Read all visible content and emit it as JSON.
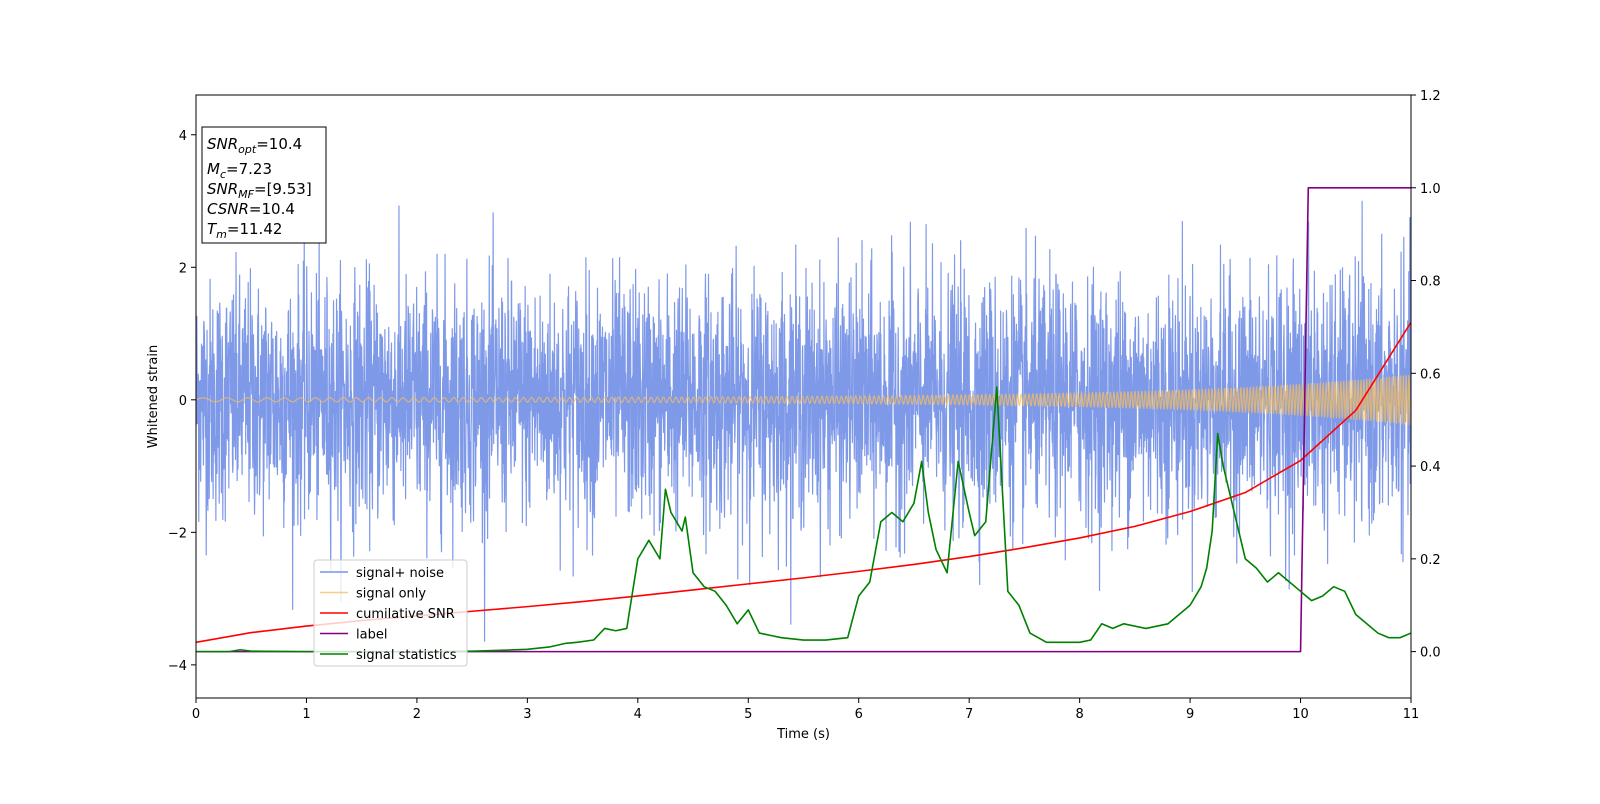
{
  "chart_data": {
    "type": "line",
    "title": "",
    "xlabel": "Time (s)",
    "ylabel": "Whitened strain",
    "ylabel_right": "",
    "xlim": [
      0,
      11
    ],
    "ylim": [
      -4.5,
      4.6
    ],
    "ylim_right": [
      -0.1,
      1.2
    ],
    "x_ticks": [
      "0",
      "1",
      "2",
      "3",
      "4",
      "5",
      "6",
      "7",
      "8",
      "9",
      "10",
      "11"
    ],
    "y_ticks": [
      "−4",
      "−2",
      "0",
      "2",
      "4"
    ],
    "y_ticks_right": [
      "0.0",
      "0.2",
      "0.4",
      "0.6",
      "0.8",
      "1.0",
      "1.2"
    ],
    "grid": false,
    "legend_position": "lower-left",
    "info_box": {
      "lines": [
        {
          "sym": "SNR",
          "sub": "opt",
          "rest": "=10.4"
        },
        {
          "sym": "M",
          "sub": "c",
          "rest": "=7.23"
        },
        {
          "sym": "SNR",
          "sub": "MF",
          "rest": "=[9.53]"
        },
        {
          "sym": "CSNR",
          "sub": "",
          "rest": "=10.4"
        },
        {
          "sym": "T",
          "sub": "m",
          "rest": "=11.42"
        }
      ]
    },
    "series": [
      {
        "name": "signal+ noise",
        "color": "#7893e8",
        "axis": "left",
        "style": "noise",
        "sample_rate_hz": 400,
        "std": 0.9,
        "peak_max": 4.18,
        "peak_min": -4.1
      },
      {
        "name": "signal only",
        "color": "#f5bd5c",
        "axis": "left",
        "style": "chirp",
        "amplitude_start": 0.03,
        "amplitude_end": 0.38,
        "frequency_start_hz": 4,
        "frequency_end_hz": 40
      },
      {
        "name": "cumilative SNR",
        "color": "#ff0000",
        "axis": "right",
        "x": [
          0,
          0.5,
          1,
          1.5,
          2,
          2.5,
          3,
          3.5,
          4,
          4.5,
          5,
          5.5,
          6,
          6.5,
          7,
          7.5,
          8,
          8.5,
          9,
          9.5,
          10,
          10.5,
          11
        ],
        "y": [
          0.02,
          0.041,
          0.055,
          0.067,
          0.077,
          0.087,
          0.097,
          0.108,
          0.12,
          0.133,
          0.146,
          0.159,
          0.173,
          0.188,
          0.205,
          0.224,
          0.245,
          0.27,
          0.302,
          0.343,
          0.412,
          0.52,
          0.71
        ]
      },
      {
        "name": "label",
        "color": "#800080",
        "axis": "right",
        "x": [
          0,
          10.0,
          10.07,
          11
        ],
        "y": [
          0.0,
          0.0,
          1.0,
          1.0
        ]
      },
      {
        "name": "signal statistics",
        "color": "#008000",
        "axis": "right",
        "x": [
          0,
          0.3,
          0.4,
          0.5,
          1.0,
          1.5,
          2.0,
          2.5,
          2.8,
          3.0,
          3.2,
          3.35,
          3.45,
          3.6,
          3.7,
          3.8,
          3.9,
          4.0,
          4.1,
          4.2,
          4.25,
          4.3,
          4.4,
          4.43,
          4.5,
          4.6,
          4.7,
          4.8,
          4.9,
          5.0,
          5.1,
          5.2,
          5.3,
          5.5,
          5.7,
          5.9,
          6.0,
          6.1,
          6.2,
          6.3,
          6.4,
          6.5,
          6.57,
          6.63,
          6.7,
          6.8,
          6.9,
          7.0,
          7.05,
          7.15,
          7.25,
          7.3,
          7.35,
          7.45,
          7.55,
          7.7,
          7.8,
          8.0,
          8.1,
          8.2,
          8.3,
          8.4,
          8.6,
          8.8,
          9.0,
          9.1,
          9.15,
          9.2,
          9.25,
          9.3,
          9.4,
          9.5,
          9.6,
          9.7,
          9.8,
          9.9,
          10.0,
          10.05,
          10.1,
          10.2,
          10.3,
          10.4,
          10.5,
          10.6,
          10.7,
          10.8,
          10.9,
          11.0
        ],
        "y": [
          0.0,
          0.0,
          0.004,
          0.001,
          0.0,
          0.0,
          0.0,
          0.001,
          0.003,
          0.005,
          0.01,
          0.018,
          0.02,
          0.025,
          0.05,
          0.045,
          0.05,
          0.2,
          0.24,
          0.2,
          0.35,
          0.3,
          0.26,
          0.29,
          0.17,
          0.14,
          0.13,
          0.1,
          0.06,
          0.09,
          0.04,
          0.035,
          0.03,
          0.025,
          0.025,
          0.03,
          0.12,
          0.15,
          0.28,
          0.3,
          0.28,
          0.32,
          0.41,
          0.3,
          0.22,
          0.17,
          0.41,
          0.3,
          0.25,
          0.28,
          0.57,
          0.35,
          0.13,
          0.1,
          0.04,
          0.02,
          0.02,
          0.02,
          0.025,
          0.06,
          0.05,
          0.06,
          0.05,
          0.06,
          0.1,
          0.14,
          0.18,
          0.26,
          0.47,
          0.4,
          0.3,
          0.2,
          0.18,
          0.15,
          0.17,
          0.15,
          0.13,
          0.12,
          0.11,
          0.12,
          0.14,
          0.13,
          0.08,
          0.06,
          0.04,
          0.03,
          0.03,
          0.04
        ]
      }
    ]
  }
}
